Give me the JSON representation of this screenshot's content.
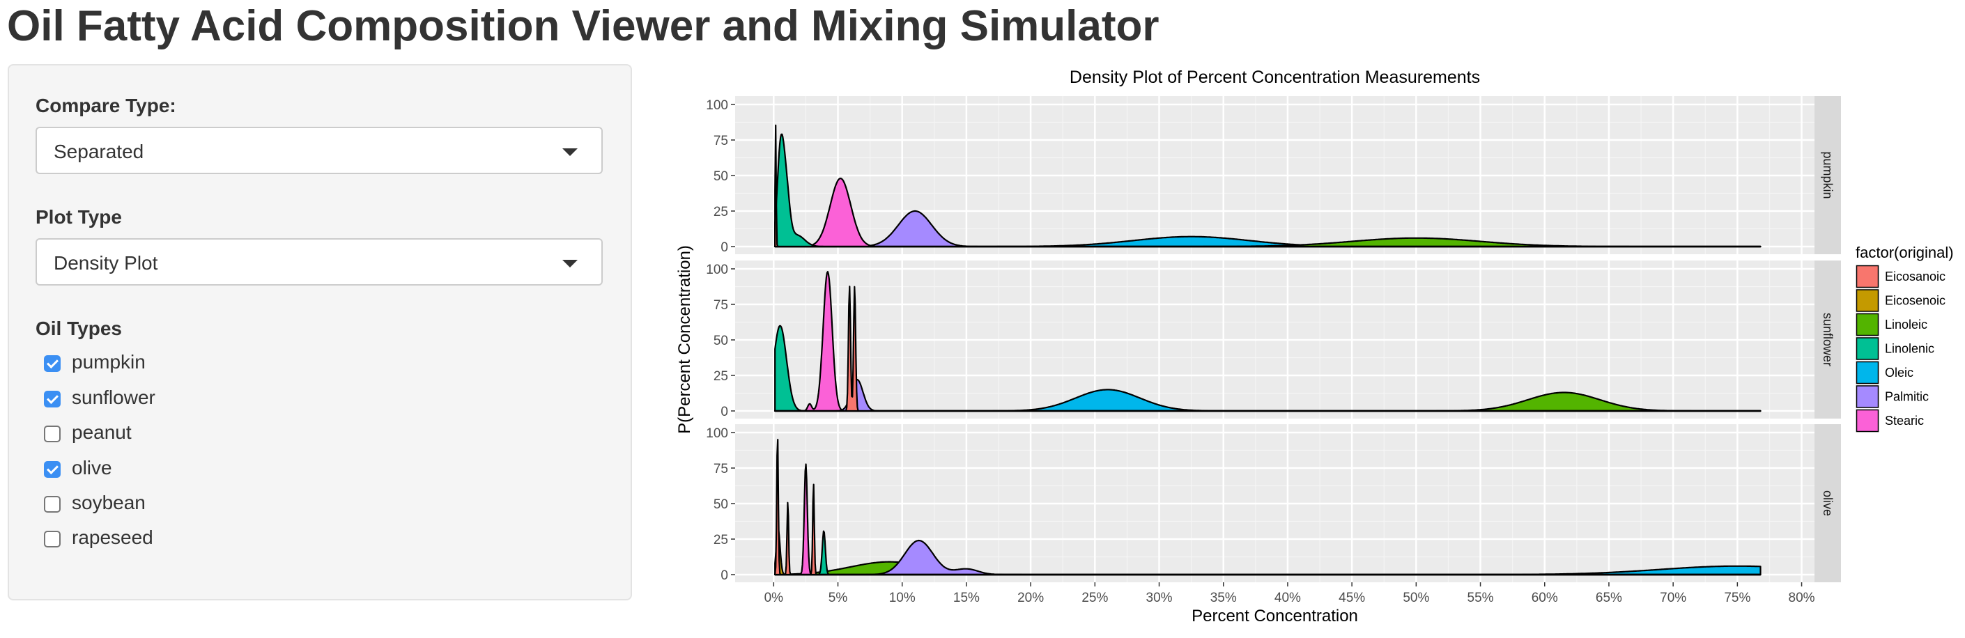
{
  "app": {
    "title": "Oil Fatty Acid Composition Viewer and Mixing Simulator"
  },
  "sidebar": {
    "compare_type": {
      "label": "Compare Type:",
      "value": "Separated"
    },
    "plot_type": {
      "label": "Plot Type",
      "value": "Density Plot"
    },
    "oil_types": {
      "label": "Oil Types",
      "options": [
        {
          "label": "pumpkin",
          "checked": true
        },
        {
          "label": "sunflower",
          "checked": true
        },
        {
          "label": "peanut",
          "checked": false
        },
        {
          "label": "olive",
          "checked": true
        },
        {
          "label": "soybean",
          "checked": false
        },
        {
          "label": "rapeseed",
          "checked": false
        }
      ]
    }
  },
  "chart_data": {
    "type": "area",
    "title": "Density Plot of Percent Concentration Measurements",
    "xlabel": "Percent Concentration",
    "ylabel": "P(Percent Concentration)",
    "xlim": [
      -3,
      81
    ],
    "ylim": [
      0,
      100
    ],
    "x_ticks": [
      0,
      5,
      10,
      15,
      20,
      25,
      30,
      35,
      40,
      45,
      50,
      55,
      60,
      65,
      70,
      75,
      80
    ],
    "x_tick_labels": [
      "0%",
      "5%",
      "10%",
      "15%",
      "20%",
      "25%",
      "30%",
      "35%",
      "40%",
      "45%",
      "50%",
      "55%",
      "60%",
      "65%",
      "70%",
      "75%",
      "80%"
    ],
    "y_ticks": [
      0,
      25,
      50,
      75,
      100
    ],
    "y_tick_labels": [
      "0",
      "25",
      "50",
      "75",
      "100"
    ],
    "grid": true,
    "legend": {
      "title": "factor(original)",
      "position": "right",
      "entries": [
        {
          "name": "Eicosanoic",
          "color": "#F8766D"
        },
        {
          "name": "Eicosenoic",
          "color": "#C49A00"
        },
        {
          "name": "Linoleic",
          "color": "#53B400"
        },
        {
          "name": "Linolenic",
          "color": "#00C094"
        },
        {
          "name": "Oleic",
          "color": "#00B6EB"
        },
        {
          "name": "Palmitic",
          "color": "#A58AFF"
        },
        {
          "name": "Stearic",
          "color": "#FB61D7"
        }
      ]
    },
    "panels": [
      {
        "facet": "pumpkin",
        "series": [
          {
            "name": "Oleic",
            "color": "#00B6EB",
            "bumps": [
              {
                "mean": 32.5,
                "sd": 4.5,
                "peak": 7
              }
            ]
          },
          {
            "name": "Linoleic",
            "color": "#53B400",
            "bumps": [
              {
                "mean": 50,
                "sd": 5,
                "peak": 6
              }
            ]
          },
          {
            "name": "Palmitic",
            "color": "#A58AFF",
            "bumps": [
              {
                "mean": 11,
                "sd": 1.3,
                "peak": 25
              }
            ]
          },
          {
            "name": "Stearic",
            "color": "#FB61D7",
            "bumps": [
              {
                "mean": 5.2,
                "sd": 0.8,
                "peak": 48
              }
            ]
          },
          {
            "name": "Linolenic",
            "color": "#00C094",
            "bumps": [
              {
                "mean": 0.5,
                "sd": 0.25,
                "peak": 55
              },
              {
                "mean": 0.9,
                "sd": 0.3,
                "peak": 45
              },
              {
                "mean": 1.8,
                "sd": 0.6,
                "peak": 8
              }
            ]
          },
          {
            "name": "Eicosanoic",
            "color": "#F8766D",
            "bumps": [
              {
                "mean": 0.15,
                "sd": 0.04,
                "peak": 86
              }
            ]
          }
        ]
      },
      {
        "facet": "sunflower",
        "series": [
          {
            "name": "Oleic",
            "color": "#00B6EB",
            "bumps": [
              {
                "mean": 26,
                "sd": 2.5,
                "peak": 15
              }
            ]
          },
          {
            "name": "Linoleic",
            "color": "#53B400",
            "bumps": [
              {
                "mean": 61.5,
                "sd": 2.8,
                "peak": 13
              }
            ]
          },
          {
            "name": "Linolenic",
            "color": "#00C094",
            "bumps": [
              {
                "mean": 0.5,
                "sd": 0.5,
                "peak": 60
              }
            ]
          },
          {
            "name": "Stearic",
            "color": "#FB61D7",
            "bumps": [
              {
                "mean": 4.2,
                "sd": 0.35,
                "peak": 98
              },
              {
                "mean": 2.8,
                "sd": 0.15,
                "peak": 5
              }
            ]
          },
          {
            "name": "Palmitic",
            "color": "#A58AFF",
            "bumps": [
              {
                "mean": 6.5,
                "sd": 0.45,
                "peak": 22
              }
            ]
          },
          {
            "name": "Eicosanoic",
            "color": "#F8766D",
            "bumps": [
              {
                "mean": 5.9,
                "sd": 0.08,
                "peak": 88
              },
              {
                "mean": 6.3,
                "sd": 0.08,
                "peak": 88
              }
            ]
          }
        ]
      },
      {
        "facet": "olive",
        "series": [
          {
            "name": "Oleic",
            "color": "#00B6EB",
            "bumps": [
              {
                "mean": 75,
                "sd": 6,
                "peak": 6
              }
            ]
          },
          {
            "name": "Linoleic",
            "color": "#53B400",
            "bumps": [
              {
                "mean": 9,
                "sd": 3,
                "peak": 9
              }
            ]
          },
          {
            "name": "Palmitic",
            "color": "#A58AFF",
            "bumps": [
              {
                "mean": 11.3,
                "sd": 1.1,
                "peak": 24
              },
              {
                "mean": 15,
                "sd": 0.9,
                "peak": 4
              }
            ]
          },
          {
            "name": "Linolenic",
            "color": "#00C094",
            "bumps": [
              {
                "mean": 3.9,
                "sd": 0.12,
                "peak": 31
              }
            ]
          },
          {
            "name": "Stearic",
            "color": "#FB61D7",
            "bumps": [
              {
                "mean": 2.5,
                "sd": 0.12,
                "peak": 78
              }
            ]
          },
          {
            "name": "Eicosenoic",
            "color": "#C49A00",
            "bumps": [
              {
                "mean": 0.35,
                "sd": 0.15,
                "peak": 32
              }
            ]
          },
          {
            "name": "Eicosanoic",
            "color": "#F8766D",
            "bumps": [
              {
                "mean": 0.3,
                "sd": 0.06,
                "peak": 100
              },
              {
                "mean": 1.1,
                "sd": 0.06,
                "peak": 52
              },
              {
                "mean": 3.1,
                "sd": 0.06,
                "peak": 65
              }
            ]
          }
        ]
      }
    ]
  }
}
